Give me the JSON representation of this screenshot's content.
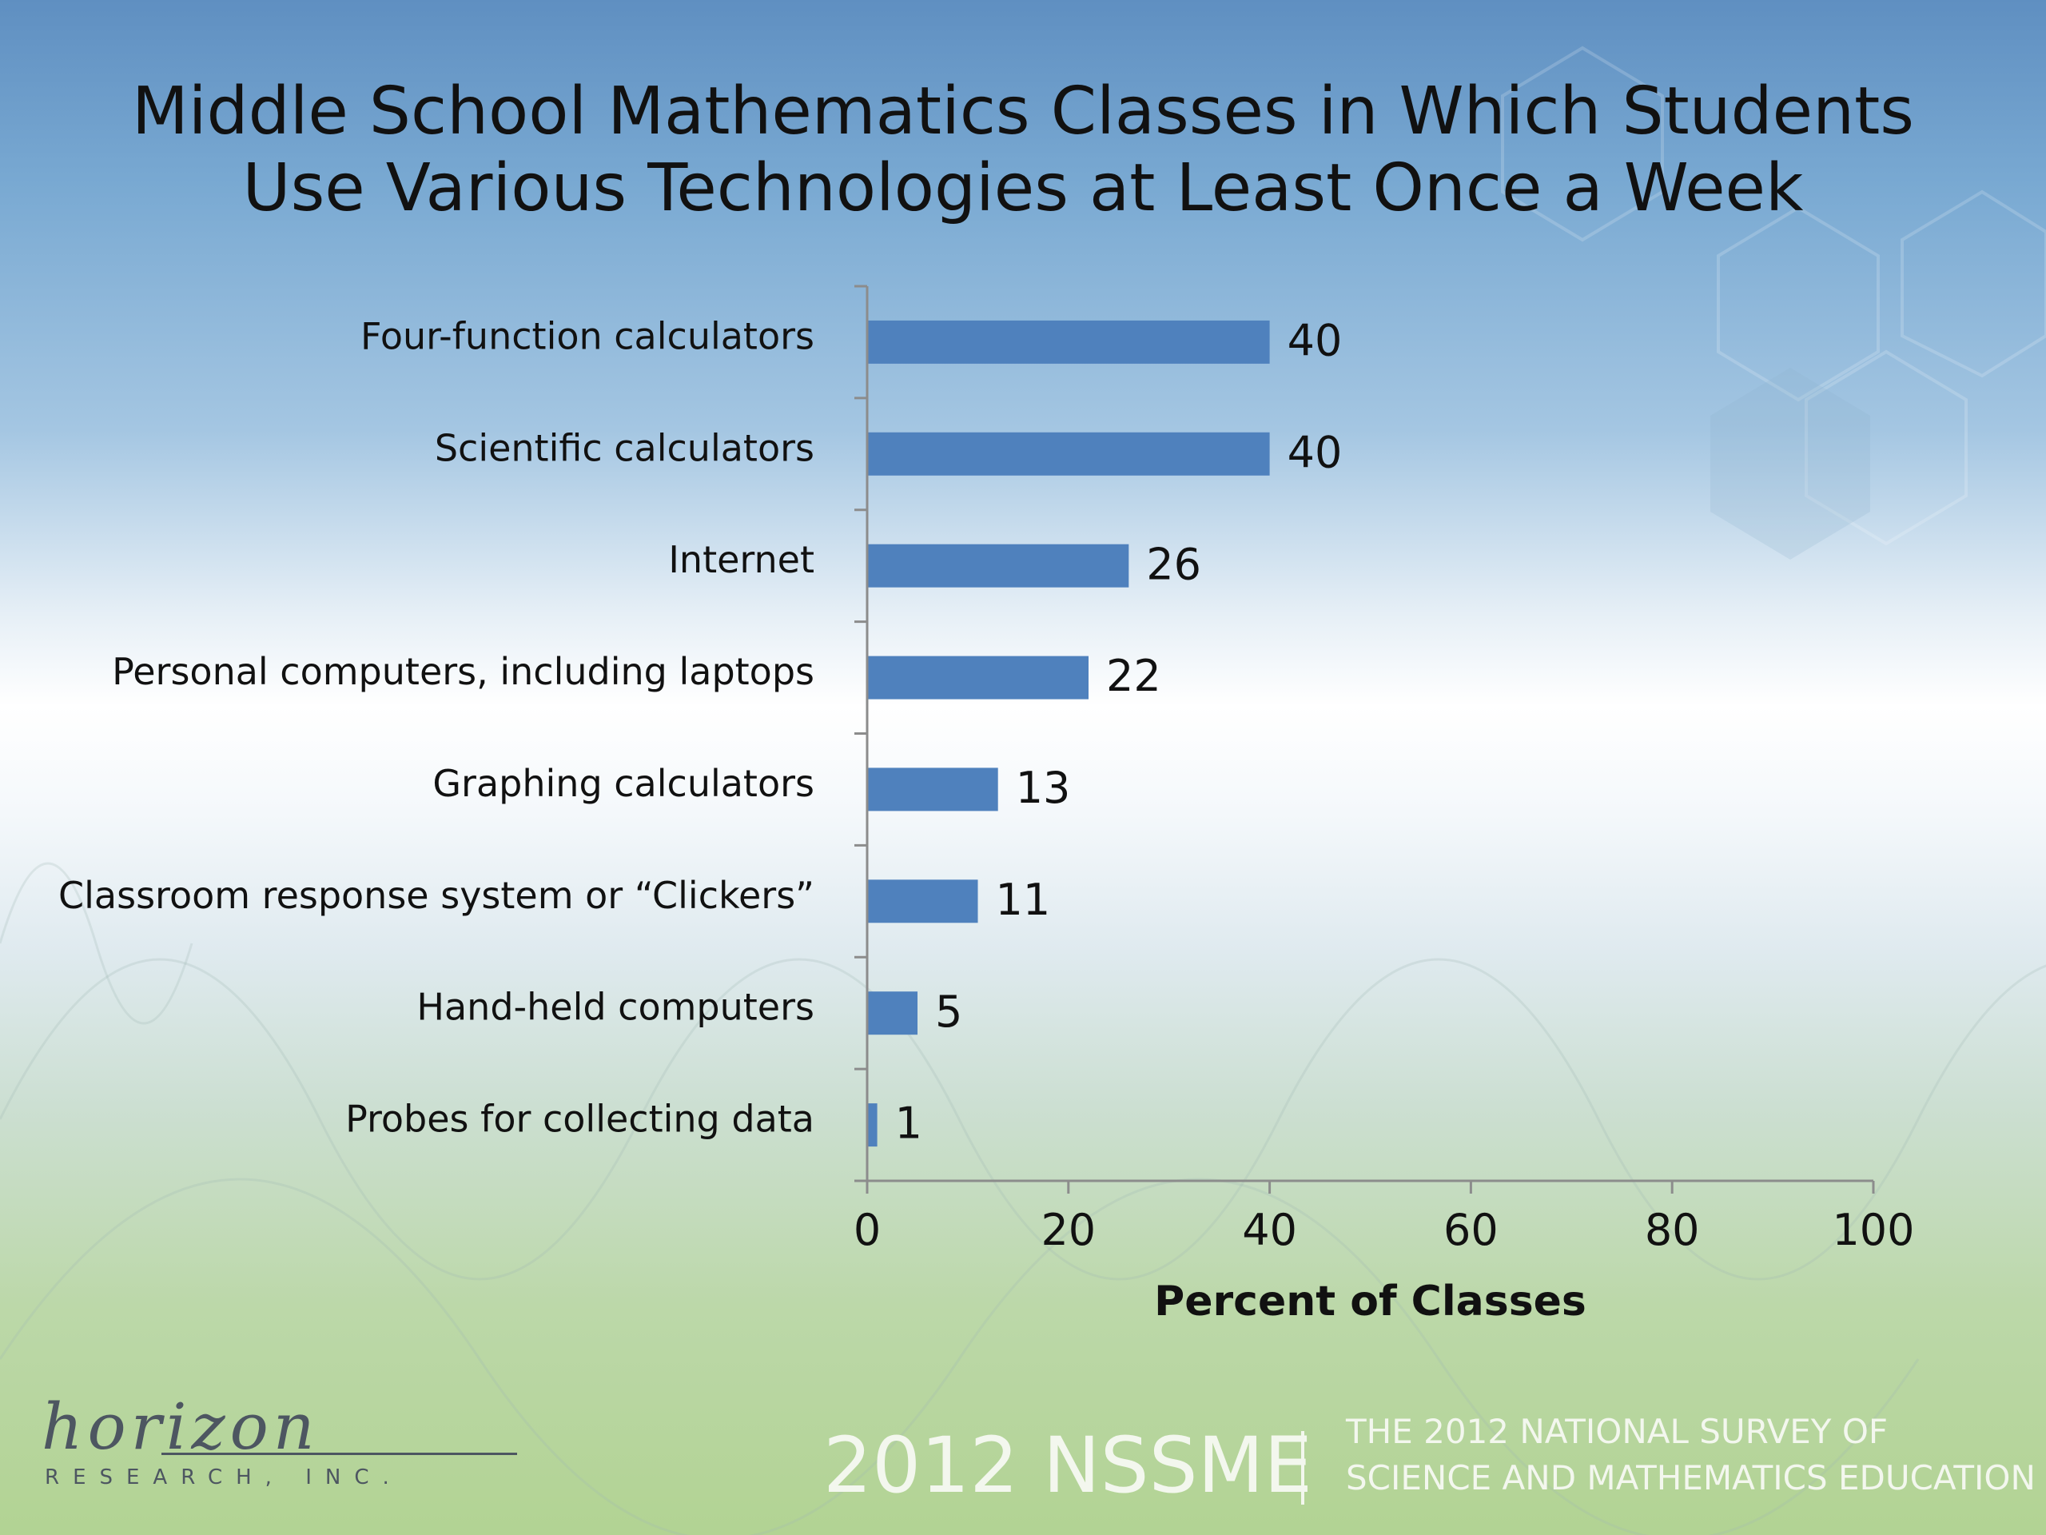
{
  "slide": {
    "title_line1": "Middle School Mathematics Classes in Which Students",
    "title_line2": "Use Various Technologies at Least Once a Week"
  },
  "chart_data": {
    "type": "bar",
    "orientation": "horizontal",
    "title": "Middle School Mathematics Classes in Which Students Use Various Technologies at Least Once a Week",
    "categories": [
      "Four-function calculators",
      "Scientific calculators",
      "Internet",
      "Personal computers, including laptops",
      "Graphing calculators",
      "Classroom response system or “Clickers”",
      "Hand-held computers",
      "Probes for collecting data"
    ],
    "values": [
      40,
      40,
      26,
      22,
      13,
      11,
      5,
      1
    ],
    "xlabel": "Percent of Classes",
    "ylabel": "",
    "xlim": [
      0,
      100
    ],
    "xticks": [
      0,
      20,
      40,
      60,
      80,
      100
    ],
    "grid": false,
    "legend": "none",
    "bar_color": "#4f81bd",
    "data_labels": true
  },
  "footer": {
    "logo_script": "horizon",
    "logo_sub": "RESEARCH, INC.",
    "brand": "2012 NSSME",
    "tagline_line1": "THE 2012 NATIONAL SURVEY OF",
    "tagline_line2": "SCIENCE AND MATHEMATICS EDUCATION"
  }
}
